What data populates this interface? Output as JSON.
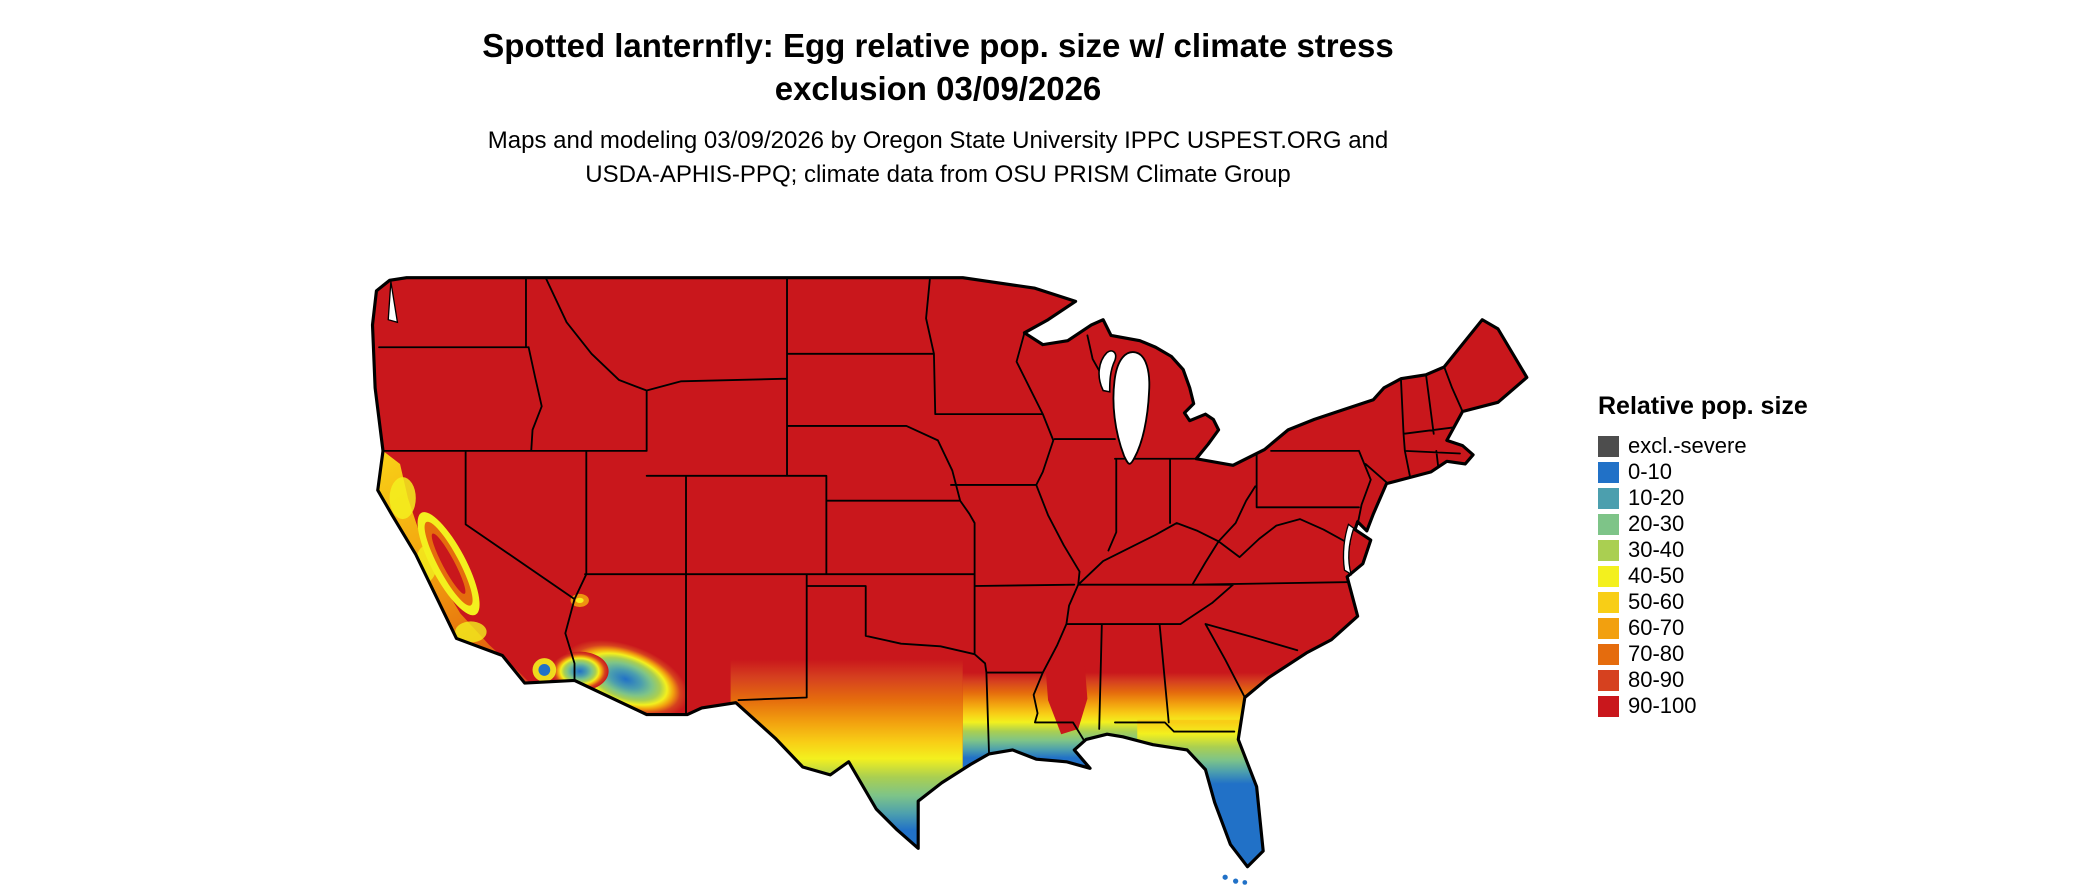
{
  "title": {
    "line1": "Spotted lanternfly: Egg relative pop. size w/ climate stress",
    "line2": "exclusion 03/09/2026"
  },
  "subtitle": {
    "line1": "Maps and modeling 03/09/2026 by Oregon State University IPPC USPEST.ORG and",
    "line2": "USDA-APHIS-PPQ; climate data from OSU PRISM Climate Group"
  },
  "map": {
    "type": "choropleth-map",
    "area": "contiguous United States",
    "dominant_value_band": "90-100",
    "low_value_areas": "Gulf coast, southern Texas, Florida peninsula, southern Arizona lowlands, California coast"
  },
  "legend": {
    "title": "Relative pop. size",
    "items": [
      {
        "label": "excl.-severe",
        "color": "#4D4D4D"
      },
      {
        "label": "0-10",
        "color": "#2171C7"
      },
      {
        "label": "10-20",
        "color": "#4C9FAE"
      },
      {
        "label": "20-30",
        "color": "#7EC488"
      },
      {
        "label": "30-40",
        "color": "#AACF51"
      },
      {
        "label": "40-50",
        "color": "#F3F01E"
      },
      {
        "label": "50-60",
        "color": "#F8CE16"
      },
      {
        "label": "60-70",
        "color": "#F2A00F"
      },
      {
        "label": "70-80",
        "color": "#E56C0D"
      },
      {
        "label": "80-90",
        "color": "#D6411F"
      },
      {
        "label": "90-100",
        "color": "#C9171C"
      }
    ]
  }
}
